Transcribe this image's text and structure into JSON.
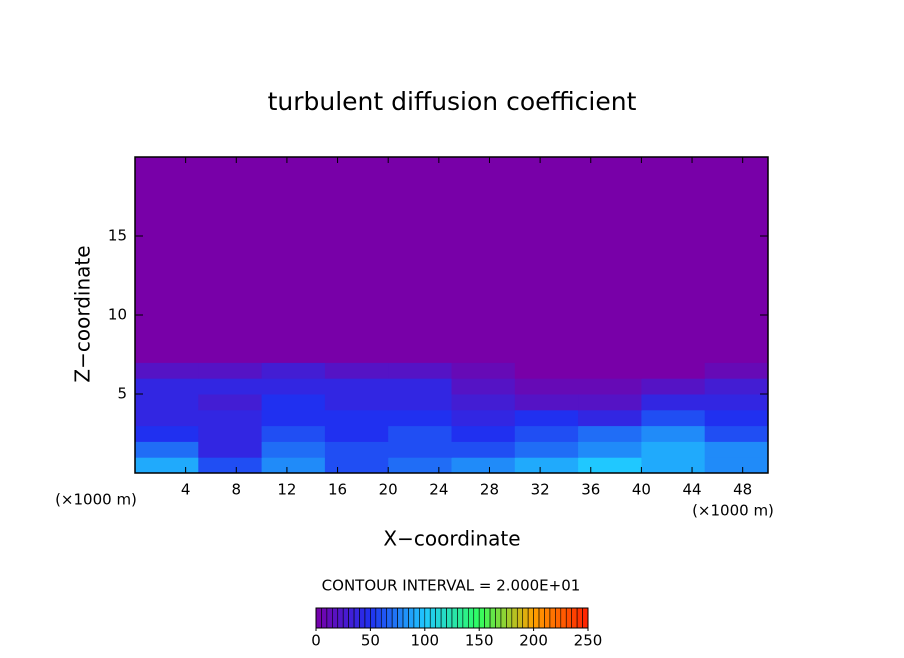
{
  "chart_data": {
    "type": "contour",
    "title": "turbulent diffusion coefficient",
    "x_label": "X−coordinate",
    "y_label": "Z−coordinate",
    "x_unit_left": "(×1000 m)",
    "x_unit_right": "(×1000 m)",
    "contour_interval_label": "CONTOUR INTERVAL = 2.000E+01",
    "xlim": [
      0,
      50
    ],
    "ylim": [
      0,
      20
    ],
    "xticks": [
      4,
      8,
      12,
      16,
      20,
      24,
      28,
      32,
      36,
      40,
      44,
      48
    ],
    "yticks": [
      5,
      10,
      15
    ],
    "xbins": [
      0,
      5,
      10,
      15,
      20,
      25,
      30,
      35,
      40,
      45,
      50
    ],
    "zbins": [
      0,
      1,
      2,
      3,
      4,
      5,
      6,
      7,
      20
    ],
    "z": [
      [
        90,
        60,
        80,
        60,
        70,
        80,
        90,
        100,
        90,
        80
      ],
      [
        70,
        40,
        70,
        60,
        60,
        60,
        70,
        80,
        90,
        80
      ],
      [
        50,
        40,
        60,
        50,
        60,
        50,
        60,
        70,
        80,
        60
      ],
      [
        40,
        40,
        50,
        50,
        50,
        40,
        50,
        40,
        60,
        50
      ],
      [
        40,
        30,
        50,
        40,
        40,
        30,
        20,
        20,
        40,
        40
      ],
      [
        40,
        40,
        40,
        40,
        40,
        20,
        10,
        10,
        20,
        30
      ],
      [
        20,
        20,
        30,
        20,
        20,
        10,
        0,
        0,
        0,
        10
      ],
      [
        0,
        0,
        0,
        0,
        0,
        0,
        0,
        0,
        0,
        0
      ]
    ],
    "clim": [
      0,
      250
    ],
    "colorbar_ticks": [
      0,
      50,
      100,
      150,
      200,
      250
    ],
    "colormap": [
      "#7800a8",
      "#2030f0",
      "#20c8ff",
      "#30ff60",
      "#ffa000",
      "#ff2000"
    ]
  }
}
